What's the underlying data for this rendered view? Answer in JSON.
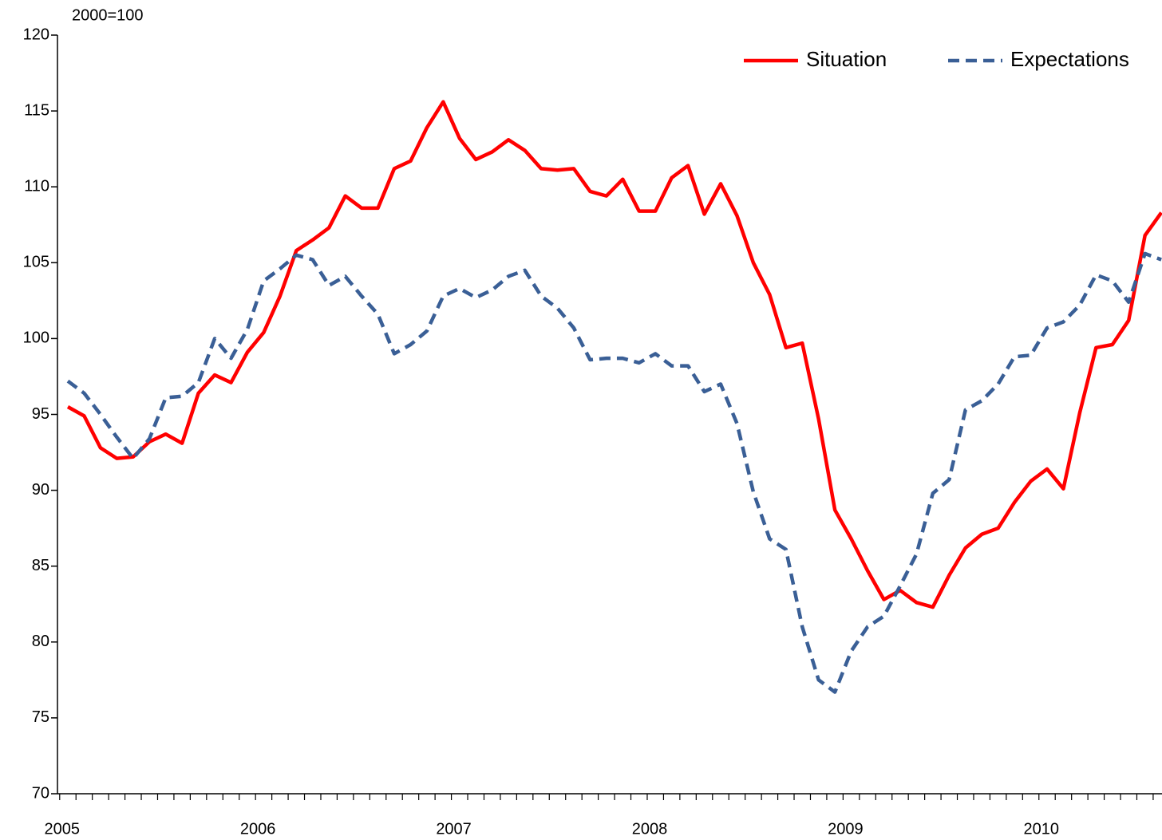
{
  "chart_data": {
    "type": "line",
    "unit_label": "2000=100",
    "categories": [
      "2005",
      null,
      null,
      null,
      null,
      null,
      null,
      null,
      null,
      null,
      null,
      null,
      "2006",
      null,
      null,
      null,
      null,
      null,
      null,
      null,
      null,
      null,
      null,
      null,
      "2007",
      null,
      null,
      null,
      null,
      null,
      null,
      null,
      null,
      null,
      null,
      null,
      "2008",
      null,
      null,
      null,
      null,
      null,
      null,
      null,
      null,
      null,
      null,
      null,
      "2009",
      null,
      null,
      null,
      null,
      null,
      null,
      null,
      null,
      null,
      null,
      null,
      "2010",
      null,
      null,
      null,
      null,
      null,
      null,
      null
    ],
    "series": [
      {
        "name": "Situation",
        "color": "#ff0000",
        "dash": false,
        "values": [
          95.5,
          94.9,
          92.8,
          92.1,
          92.2,
          93.2,
          93.7,
          93.1,
          96.4,
          97.6,
          97.1,
          99.1,
          100.4,
          102.8,
          105.8,
          106.5,
          107.3,
          109.4,
          108.6,
          108.6,
          111.2,
          111.7,
          113.9,
          115.6,
          113.2,
          111.8,
          112.3,
          113.1,
          112.4,
          111.2,
          111.1,
          111.2,
          109.7,
          109.4,
          110.5,
          108.4,
          108.4,
          110.6,
          111.4,
          108.2,
          110.2,
          108.1,
          105.0,
          102.9,
          99.4,
          99.7,
          94.7,
          88.7,
          86.8,
          84.7,
          82.8,
          83.4,
          82.6,
          82.3,
          84.4,
          86.2,
          87.1,
          87.5,
          89.2,
          90.6,
          91.4,
          90.1,
          95.1,
          99.4,
          99.6,
          101.2,
          106.8,
          108.3
        ]
      },
      {
        "name": "Expectations",
        "color": "#3a5f96",
        "dash": true,
        "values": [
          97.2,
          96.4,
          95.0,
          93.5,
          92.1,
          93.4,
          96.1,
          96.2,
          97.1,
          100.0,
          98.7,
          100.6,
          103.8,
          104.6,
          105.5,
          105.2,
          103.5,
          104.1,
          102.8,
          101.6,
          99.0,
          99.6,
          100.5,
          102.8,
          103.3,
          102.7,
          103.2,
          104.1,
          104.5,
          102.8,
          102.0,
          100.7,
          98.6,
          98.7,
          98.7,
          98.4,
          99.0,
          98.2,
          98.2,
          96.5,
          97.0,
          94.4,
          89.9,
          86.8,
          86.1,
          81.0,
          77.5,
          76.7,
          79.4,
          81.0,
          81.7,
          83.7,
          85.8,
          89.8,
          90.7,
          95.3,
          95.9,
          97.0,
          98.8,
          98.9,
          100.7,
          101.1,
          102.2,
          104.2,
          103.8,
          102.4,
          105.6,
          105.2
        ]
      }
    ],
    "ylim": [
      70,
      120
    ],
    "yticks": [
      70,
      75,
      80,
      85,
      90,
      95,
      100,
      105,
      110,
      115,
      120
    ],
    "grid": false,
    "legend": "top-right"
  }
}
